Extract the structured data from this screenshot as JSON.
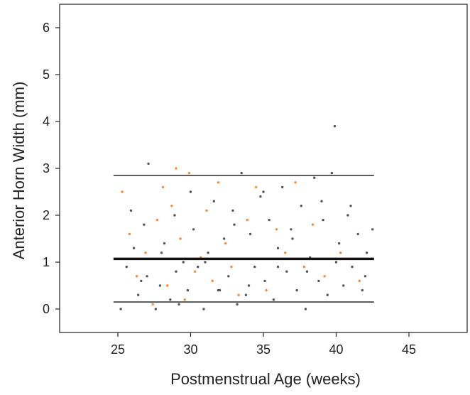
{
  "chart_data": {
    "type": "scatter",
    "title": "",
    "xlabel": "Postmenstrual Age (weeks)",
    "ylabel": "Anterior Horn Width (mm)",
    "xlim": [
      21,
      49
    ],
    "ylim": [
      -0.5,
      6.5
    ],
    "x_ticks": [
      25,
      30,
      35,
      40,
      45
    ],
    "y_ticks": [
      0,
      1,
      2,
      3,
      4,
      5,
      6
    ],
    "grid": false,
    "legend": "none",
    "reference_lines": [
      {
        "name": "mean",
        "y": 1.07,
        "x_range": [
          24.7,
          42.6
        ],
        "style": "thick"
      },
      {
        "name": "upper",
        "y": 2.85,
        "x_range": [
          24.7,
          42.6
        ],
        "style": "thin"
      },
      {
        "name": "lower",
        "y": 0.15,
        "x_range": [
          24.7,
          42.6
        ],
        "style": "thin"
      }
    ],
    "colors": {
      "gray": "#555555",
      "orange": "#f28c3a",
      "line": "#111111"
    },
    "series": [
      {
        "color": "gray",
        "points": [
          [
            25.2,
            0.0
          ],
          [
            25.6,
            0.9
          ],
          [
            26.1,
            1.3
          ],
          [
            26.4,
            0.3
          ],
          [
            26.8,
            1.8
          ],
          [
            27.0,
            0.7
          ],
          [
            27.1,
            3.1
          ],
          [
            27.6,
            0.0
          ],
          [
            27.9,
            0.5
          ],
          [
            28.2,
            1.4
          ],
          [
            28.6,
            0.2
          ],
          [
            28.9,
            2.0
          ],
          [
            29.2,
            0.1
          ],
          [
            29.5,
            1.0
          ],
          [
            29.8,
            0.4
          ],
          [
            30.2,
            1.7
          ],
          [
            30.5,
            0.9
          ],
          [
            30.9,
            0.0
          ],
          [
            31.2,
            1.2
          ],
          [
            31.6,
            2.3
          ],
          [
            31.9,
            0.4
          ],
          [
            32.3,
            1.5
          ],
          [
            32.6,
            0.7
          ],
          [
            32.9,
            2.1
          ],
          [
            33.2,
            0.1
          ],
          [
            33.5,
            2.9
          ],
          [
            33.8,
            0.3
          ],
          [
            34.1,
            1.6
          ],
          [
            34.4,
            0.9
          ],
          [
            34.8,
            2.4
          ],
          [
            35.1,
            0.6
          ],
          [
            35.4,
            1.9
          ],
          [
            35.7,
            0.2
          ],
          [
            36.0,
            1.3
          ],
          [
            36.3,
            2.6
          ],
          [
            36.6,
            0.8
          ],
          [
            36.9,
            1.7
          ],
          [
            37.3,
            0.4
          ],
          [
            37.6,
            2.2
          ],
          [
            37.9,
            0.0
          ],
          [
            38.2,
            1.1
          ],
          [
            38.5,
            2.8
          ],
          [
            38.8,
            0.6
          ],
          [
            39.1,
            1.9
          ],
          [
            39.4,
            0.3
          ],
          [
            39.7,
            2.9
          ],
          [
            39.9,
            3.9
          ],
          [
            40.2,
            1.4
          ],
          [
            40.5,
            0.5
          ],
          [
            40.8,
            2.0
          ],
          [
            41.1,
            0.9
          ],
          [
            41.5,
            1.6
          ],
          [
            41.8,
            0.4
          ],
          [
            42.1,
            1.2
          ],
          [
            42.5,
            1.7
          ],
          [
            25.9,
            2.1
          ],
          [
            26.6,
            0.6
          ],
          [
            28.0,
            1.2
          ],
          [
            29.0,
            0.8
          ],
          [
            30.0,
            2.5
          ],
          [
            31.0,
            1.0
          ],
          [
            32.0,
            0.4
          ],
          [
            33.0,
            1.8
          ],
          [
            34.0,
            0.5
          ],
          [
            35.0,
            2.5
          ],
          [
            36.0,
            0.9
          ],
          [
            37.0,
            1.5
          ],
          [
            38.0,
            0.8
          ],
          [
            39.0,
            2.3
          ],
          [
            40.0,
            1.0
          ],
          [
            41.0,
            2.2
          ],
          [
            42.0,
            0.7
          ]
        ]
      },
      {
        "color": "orange",
        "points": [
          [
            25.3,
            2.5
          ],
          [
            25.8,
            1.6
          ],
          [
            26.3,
            0.7
          ],
          [
            26.9,
            1.2
          ],
          [
            27.4,
            0.1
          ],
          [
            27.7,
            1.9
          ],
          [
            28.1,
            2.6
          ],
          [
            28.4,
            0.5
          ],
          [
            28.7,
            2.2
          ],
          [
            29.0,
            3.0
          ],
          [
            29.3,
            1.5
          ],
          [
            29.6,
            0.2
          ],
          [
            29.9,
            2.9
          ],
          [
            30.3,
            0.8
          ],
          [
            30.7,
            1.1
          ],
          [
            31.1,
            2.1
          ],
          [
            31.5,
            0.6
          ],
          [
            31.9,
            2.7
          ],
          [
            32.4,
            1.4
          ],
          [
            32.8,
            0.9
          ],
          [
            33.3,
            0.3
          ],
          [
            33.9,
            1.9
          ],
          [
            34.5,
            2.6
          ],
          [
            35.2,
            0.4
          ],
          [
            35.9,
            1.7
          ],
          [
            36.5,
            1.2
          ],
          [
            37.2,
            2.7
          ],
          [
            37.8,
            0.9
          ],
          [
            38.4,
            1.8
          ],
          [
            39.2,
            0.7
          ],
          [
            40.3,
            1.2
          ],
          [
            41.6,
            0.6
          ]
        ]
      }
    ]
  }
}
